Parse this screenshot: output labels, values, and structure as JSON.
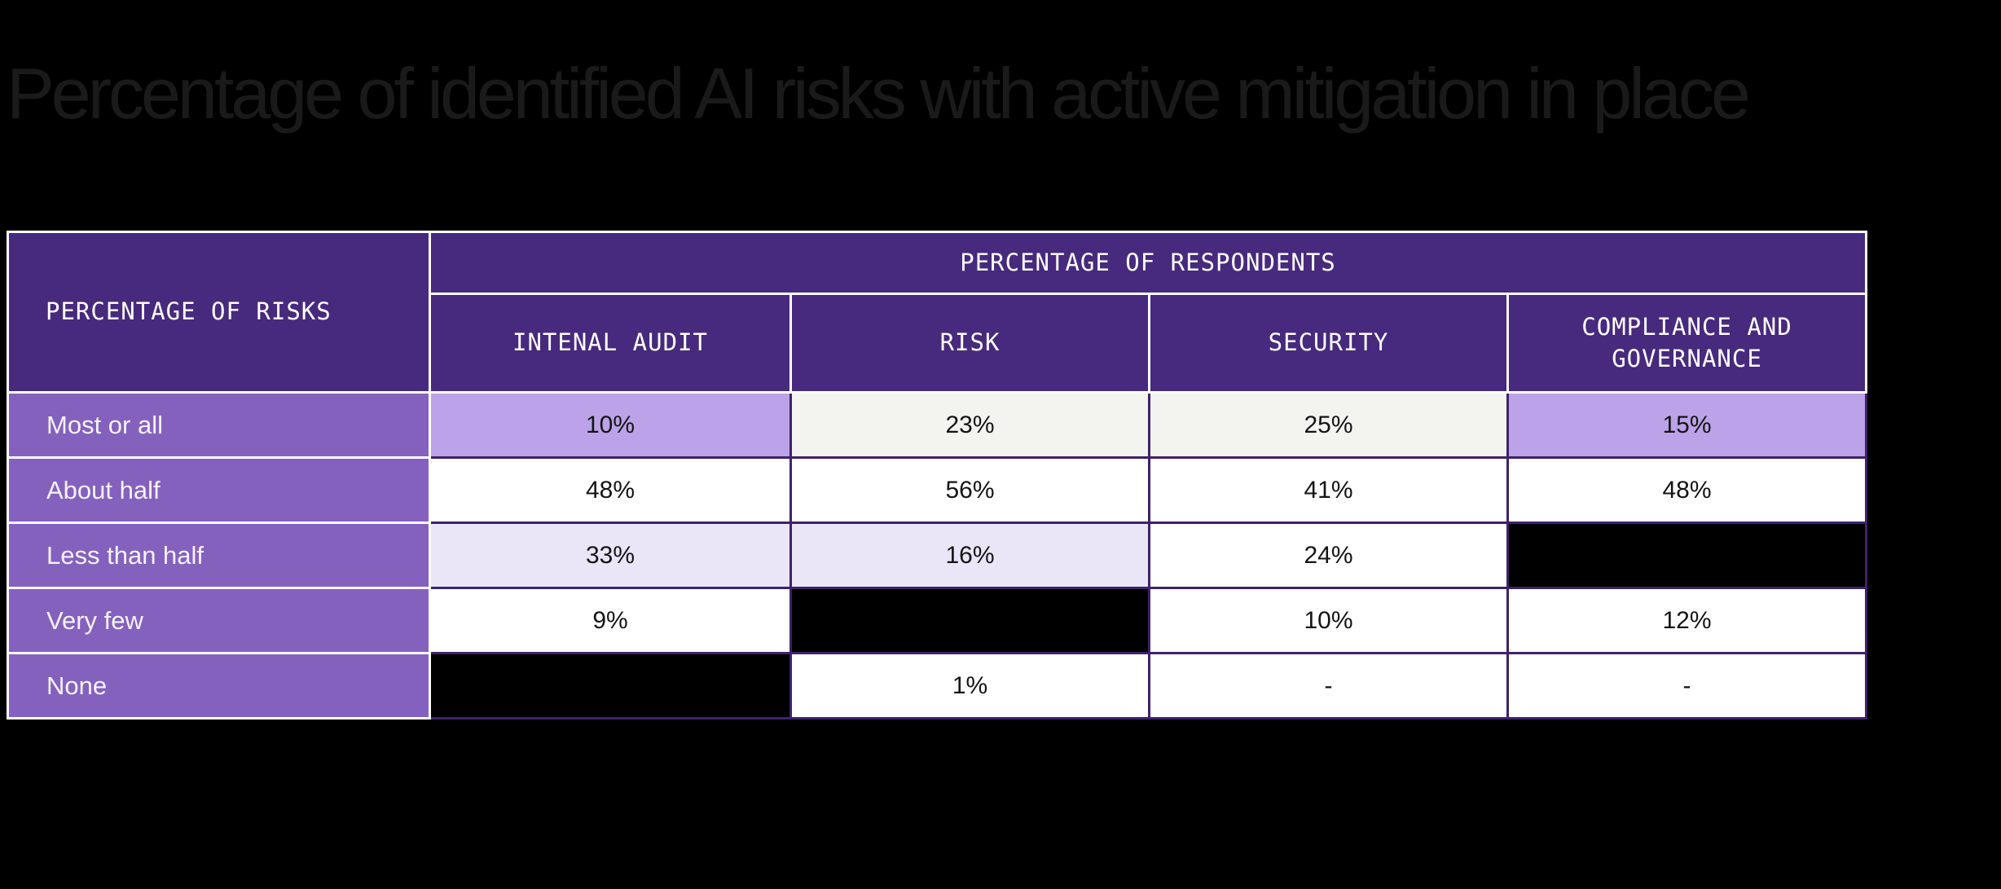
{
  "title": "Percentage of identified AI risks with active mitigation in place",
  "table": {
    "corner_header": "PERCENTAGE OF RISKS",
    "span_header": "PERCENTAGE OF RESPONDENTS",
    "column_headers": [
      "INTENAL AUDIT",
      "RISK",
      "SECURITY",
      "COMPLIANCE AND GOVERNANCE"
    ],
    "rows": [
      {
        "label": "Most or all",
        "cells": [
          {
            "value": "10%",
            "style": "highlight"
          },
          {
            "value": "23%",
            "style": "offwhite"
          },
          {
            "value": "25%",
            "style": "offwhite"
          },
          {
            "value": "15%",
            "style": "highlight"
          }
        ]
      },
      {
        "label": "About half",
        "cells": [
          {
            "value": "48%",
            "style": "white"
          },
          {
            "value": "56%",
            "style": "white"
          },
          {
            "value": "41%",
            "style": "white"
          },
          {
            "value": "48%",
            "style": "white"
          }
        ]
      },
      {
        "label": "Less than half",
        "cells": [
          {
            "value": "33%",
            "style": "soft"
          },
          {
            "value": "16%",
            "style": "soft"
          },
          {
            "value": "24%",
            "style": "white"
          },
          {
            "value": "",
            "style": "black"
          }
        ]
      },
      {
        "label": "Very few",
        "cells": [
          {
            "value": "9%",
            "style": "white"
          },
          {
            "value": "",
            "style": "black"
          },
          {
            "value": "10%",
            "style": "white"
          },
          {
            "value": "12%",
            "style": "white"
          }
        ]
      },
      {
        "label": "None",
        "cells": [
          {
            "value": "",
            "style": "black"
          },
          {
            "value": "1%",
            "style": "white"
          },
          {
            "value": "-",
            "style": "white"
          },
          {
            "value": "-",
            "style": "white"
          }
        ]
      }
    ]
  },
  "colors": {
    "background": "#000000",
    "title_text": "#1a1a1a",
    "header_purple": "#472a7d",
    "label_purple": "#8561be",
    "cell_highlight": "#bca2e8",
    "cell_soft": "#eae5f7",
    "cell_offwhite": "#f3f4ef",
    "separator_dark": "#3e2269",
    "separator_light": "#ffffff"
  }
}
